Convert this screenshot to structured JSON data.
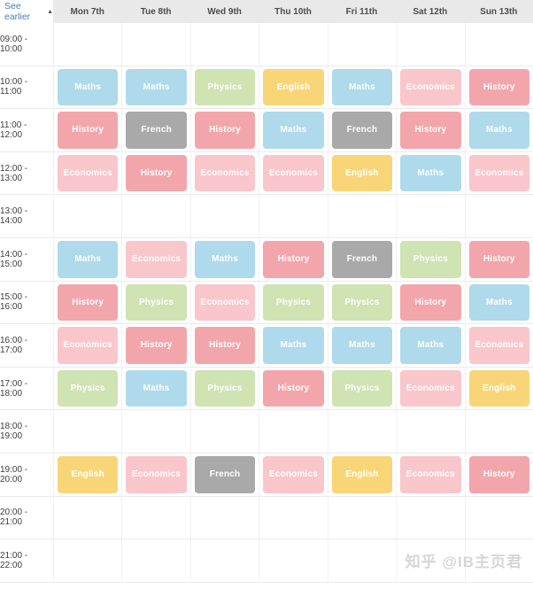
{
  "toolbar": {
    "see_earlier_label": "See earlier",
    "collapse_icon": "▲"
  },
  "calendar": {
    "days": [
      "Mon 7th",
      "Tue 8th",
      "Wed 9th",
      "Thu 10th",
      "Fri 11th",
      "Sat 12th",
      "Sun 13th"
    ],
    "time_slots": [
      "09:00 - 10:00",
      "10:00 - 11:00",
      "11:00 - 12:00",
      "12:00 - 13:00",
      "13:00 - 14:00",
      "14:00 - 15:00",
      "15:00 - 16:00",
      "16:00 - 17:00",
      "17:00 - 18:00",
      "18:00 - 19:00",
      "19:00 - 20:00",
      "20:00 - 21:00",
      "21:00 - 22:00"
    ],
    "subjects": {
      "Maths": "#aedaeb",
      "Physics": "#cfe3b3",
      "History": "#f2a6ac",
      "Economics": "#f9c6cb",
      "English": "#f8d678",
      "French": "#a9a9a9"
    },
    "grid": [
      [
        null,
        null,
        null,
        null,
        null,
        null,
        null
      ],
      [
        "Maths",
        "Maths",
        "Physics",
        "English",
        "Maths",
        "Economics",
        "History"
      ],
      [
        "History",
        "French",
        "History",
        "Maths",
        "French",
        "History",
        "Maths"
      ],
      [
        "Economics",
        "History",
        "Economics",
        "Economics",
        "English",
        "Maths",
        "Economics"
      ],
      [
        null,
        null,
        null,
        null,
        null,
        null,
        null
      ],
      [
        "Maths",
        "Economics",
        "Maths",
        "History",
        "French",
        "Physics",
        "History"
      ],
      [
        "History",
        "Physics",
        "Economics",
        "Physics",
        "Physics",
        "History",
        "Maths"
      ],
      [
        "Economics",
        "History",
        "History",
        "Maths",
        "Maths",
        "Maths",
        "Economics"
      ],
      [
        "Physics",
        "Maths",
        "Physics",
        "History",
        "Physics",
        "Economics",
        "English"
      ],
      [
        null,
        null,
        null,
        null,
        null,
        null,
        null
      ],
      [
        "English",
        "Economics",
        "French",
        "Economics",
        "English",
        "Economics",
        "History"
      ],
      [
        null,
        null,
        null,
        null,
        null,
        null,
        null
      ],
      [
        null,
        null,
        null,
        null,
        null,
        null,
        null
      ]
    ]
  },
  "watermark": {
    "text": "知乎 @IB主页君"
  },
  "colors": {
    "header_bg": "#e9e9e9",
    "header_text": "#4d4d4d",
    "time_text": "#3d3d3d",
    "link": "#4480b2",
    "grid_border": "#ebebeb",
    "block_text": "#ffffff",
    "watermark_text": "#d6d6d6"
  }
}
